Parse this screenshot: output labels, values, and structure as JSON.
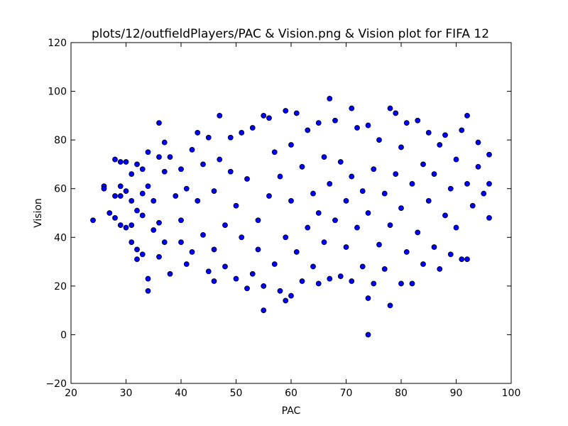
{
  "chart_data": {
    "type": "scatter",
    "title": "plots/12/outfieldPlayers/PAC & Vision.png & Vision plot for FIFA 12",
    "xlabel": "PAC",
    "ylabel": "Vision",
    "xlim": [
      20,
      100
    ],
    "ylim": [
      -20,
      120
    ],
    "xticks": [
      20,
      30,
      40,
      50,
      60,
      70,
      80,
      90,
      100
    ],
    "yticks": [
      -20,
      0,
      20,
      40,
      60,
      80,
      100,
      120
    ],
    "xtick_labels": [
      "20",
      "30",
      "40",
      "50",
      "60",
      "70",
      "80",
      "90",
      "100"
    ],
    "ytick_labels": [
      "−20",
      "0",
      "20",
      "40",
      "60",
      "80",
      "100",
      "120"
    ],
    "grid": false,
    "legend": "none",
    "marker_color": "#0000ff",
    "marker_edge": "#000000",
    "series": [
      {
        "points": [
          [
            24,
            47
          ],
          [
            26,
            61
          ],
          [
            26,
            60
          ],
          [
            27,
            50
          ],
          [
            28,
            72
          ],
          [
            28,
            57
          ],
          [
            28,
            48
          ],
          [
            29,
            71
          ],
          [
            29,
            61
          ],
          [
            29,
            57
          ],
          [
            29,
            45
          ],
          [
            30,
            71
          ],
          [
            30,
            59
          ],
          [
            30,
            44
          ],
          [
            31,
            66
          ],
          [
            31,
            55
          ],
          [
            31,
            45
          ],
          [
            31,
            38
          ],
          [
            32,
            70
          ],
          [
            32,
            51
          ],
          [
            32,
            35
          ],
          [
            32,
            31
          ],
          [
            33,
            68
          ],
          [
            33,
            58
          ],
          [
            33,
            49
          ],
          [
            33,
            33
          ],
          [
            34,
            75
          ],
          [
            34,
            61
          ],
          [
            34,
            23
          ],
          [
            34,
            18
          ],
          [
            35,
            43
          ],
          [
            35,
            55
          ],
          [
            36,
            87
          ],
          [
            36,
            73
          ],
          [
            36,
            46
          ],
          [
            36,
            32
          ],
          [
            37,
            79
          ],
          [
            37,
            67
          ],
          [
            37,
            38
          ],
          [
            38,
            25
          ],
          [
            38,
            73
          ],
          [
            39,
            57
          ],
          [
            40,
            68
          ],
          [
            40,
            47
          ],
          [
            40,
            38
          ],
          [
            41,
            29
          ],
          [
            41,
            60
          ],
          [
            42,
            76
          ],
          [
            42,
            34
          ],
          [
            43,
            83
          ],
          [
            43,
            55
          ],
          [
            44,
            41
          ],
          [
            44,
            70
          ],
          [
            45,
            26
          ],
          [
            45,
            81
          ],
          [
            46,
            35
          ],
          [
            46,
            59
          ],
          [
            46,
            22
          ],
          [
            47,
            90
          ],
          [
            47,
            72
          ],
          [
            48,
            28
          ],
          [
            48,
            45
          ],
          [
            49,
            81
          ],
          [
            49,
            67
          ],
          [
            50,
            53
          ],
          [
            50,
            23
          ],
          [
            51,
            83
          ],
          [
            51,
            40
          ],
          [
            52,
            19
          ],
          [
            52,
            64
          ],
          [
            53,
            25
          ],
          [
            53,
            85
          ],
          [
            54,
            47
          ],
          [
            54,
            35
          ],
          [
            55,
            10
          ],
          [
            55,
            90
          ],
          [
            55,
            20
          ],
          [
            56,
            89
          ],
          [
            56,
            57
          ],
          [
            57,
            29
          ],
          [
            57,
            75
          ],
          [
            58,
            18
          ],
          [
            58,
            65
          ],
          [
            59,
            14
          ],
          [
            59,
            92
          ],
          [
            59,
            40
          ],
          [
            60,
            16
          ],
          [
            60,
            78
          ],
          [
            60,
            55
          ],
          [
            61,
            91
          ],
          [
            61,
            34
          ],
          [
            62,
            22
          ],
          [
            62,
            69
          ],
          [
            63,
            44
          ],
          [
            63,
            84
          ],
          [
            64,
            28
          ],
          [
            64,
            58
          ],
          [
            65,
            21
          ],
          [
            65,
            87
          ],
          [
            65,
            50
          ],
          [
            66,
            38
          ],
          [
            66,
            73
          ],
          [
            67,
            97
          ],
          [
            67,
            23
          ],
          [
            67,
            62
          ],
          [
            68,
            47
          ],
          [
            68,
            88
          ],
          [
            69,
            24
          ],
          [
            69,
            71
          ],
          [
            70,
            55
          ],
          [
            70,
            36
          ],
          [
            71,
            93
          ],
          [
            71,
            22
          ],
          [
            71,
            65
          ],
          [
            72,
            44
          ],
          [
            72,
            85
          ],
          [
            73,
            28
          ],
          [
            73,
            59
          ],
          [
            74,
            0
          ],
          [
            74,
            15
          ],
          [
            74,
            86
          ],
          [
            74,
            50
          ],
          [
            75,
            21
          ],
          [
            75,
            68
          ],
          [
            76,
            37
          ],
          [
            76,
            80
          ],
          [
            77,
            27
          ],
          [
            77,
            58
          ],
          [
            78,
            12
          ],
          [
            78,
            93
          ],
          [
            78,
            45
          ],
          [
            79,
            91
          ],
          [
            79,
            66
          ],
          [
            80,
            21
          ],
          [
            80,
            77
          ],
          [
            80,
            52
          ],
          [
            81,
            34
          ],
          [
            81,
            87
          ],
          [
            82,
            21
          ],
          [
            82,
            62
          ],
          [
            83,
            42
          ],
          [
            83,
            88
          ],
          [
            84,
            29
          ],
          [
            84,
            70
          ],
          [
            85,
            55
          ],
          [
            85,
            83
          ],
          [
            86,
            36
          ],
          [
            86,
            66
          ],
          [
            87,
            27
          ],
          [
            87,
            78
          ],
          [
            88,
            49
          ],
          [
            88,
            82
          ],
          [
            89,
            33
          ],
          [
            89,
            60
          ],
          [
            90,
            72
          ],
          [
            90,
            44
          ],
          [
            91,
            31
          ],
          [
            91,
            84
          ],
          [
            92,
            31
          ],
          [
            92,
            90
          ],
          [
            92,
            62
          ],
          [
            93,
            53
          ],
          [
            94,
            69
          ],
          [
            94,
            79
          ],
          [
            95,
            58
          ],
          [
            96,
            48
          ],
          [
            96,
            62
          ],
          [
            96,
            74
          ]
        ]
      }
    ]
  }
}
